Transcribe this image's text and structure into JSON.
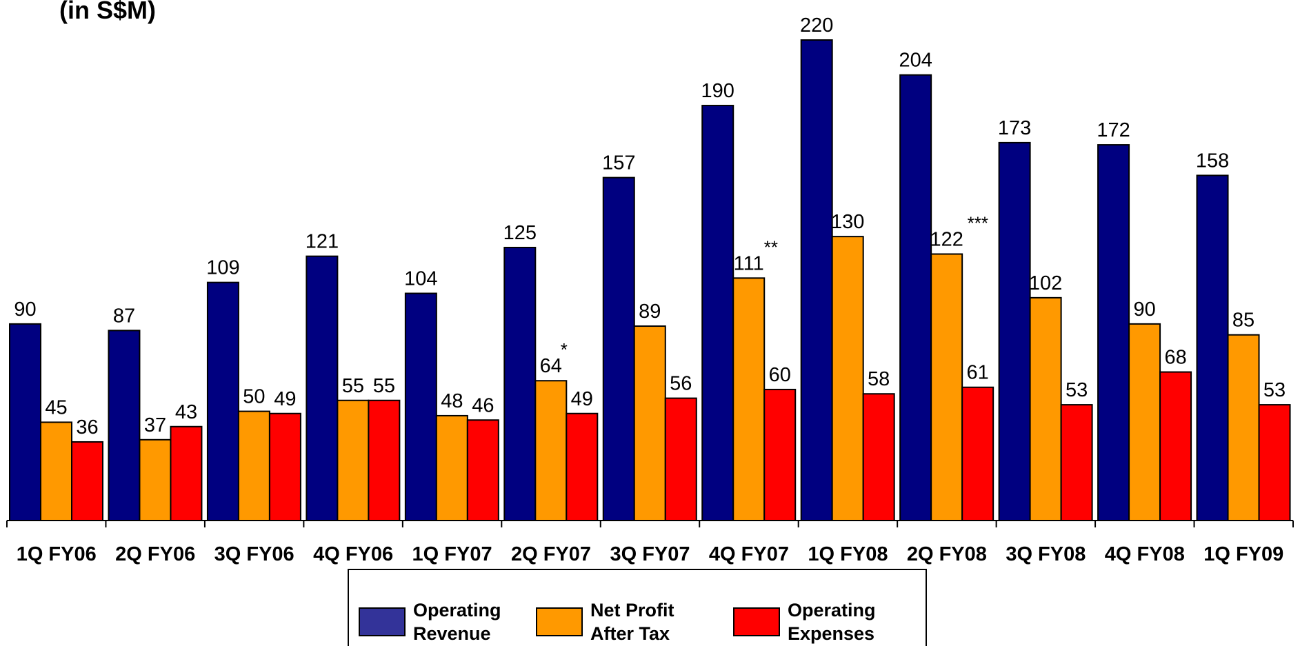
{
  "unit_label": "(in S$M)",
  "colors": {
    "operating_revenue": "#000080",
    "net_profit_after_tax": "#FF9900",
    "operating_expenses": "#FF0000",
    "legend_revenue": "#333399"
  },
  "chart_data": {
    "type": "bar",
    "title": "",
    "xlabel": "",
    "ylabel": "",
    "ylim": [
      0,
      220
    ],
    "grid": false,
    "legend_position": "bottom",
    "categories": [
      "1Q FY06",
      "2Q FY06",
      "3Q FY06",
      "4Q FY06",
      "1Q FY07",
      "2Q FY07",
      "3Q FY07",
      "4Q FY07",
      "1Q FY08",
      "2Q FY08",
      "3Q FY08",
      "4Q FY08",
      "1Q FY09"
    ],
    "series": [
      {
        "name": "Operating Revenue",
        "values": [
          90,
          87,
          109,
          121,
          104,
          125,
          157,
          190,
          220,
          204,
          173,
          172,
          158
        ]
      },
      {
        "name": "Net Profit After Tax",
        "values": [
          45,
          37,
          50,
          55,
          48,
          64,
          89,
          111,
          130,
          122,
          102,
          90,
          85
        ]
      },
      {
        "name": "Operating Expenses",
        "values": [
          36,
          43,
          49,
          55,
          46,
          49,
          56,
          60,
          58,
          61,
          53,
          68,
          53
        ]
      }
    ],
    "annotations": [
      {
        "category": "2Q FY07",
        "series": "Net Profit After Tax",
        "text": "*"
      },
      {
        "category": "4Q FY07",
        "series": "Net Profit After Tax",
        "text": "**"
      },
      {
        "category": "2Q FY08",
        "series": "Net Profit After Tax",
        "text": "***"
      }
    ],
    "legend": [
      {
        "line1": "Operating",
        "line2": "Revenue"
      },
      {
        "line1": "Net Profit",
        "line2": "After Tax"
      },
      {
        "line1": "Operating",
        "line2": "Expenses"
      }
    ]
  }
}
